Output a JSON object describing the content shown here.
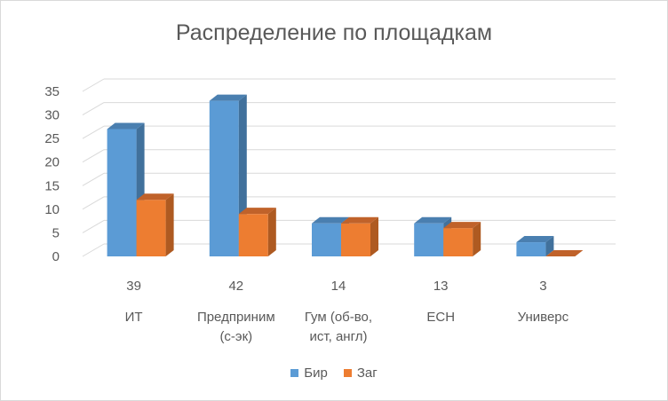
{
  "chart_data": {
    "type": "bar",
    "title": "Распределение по площадкам",
    "categories": [
      [
        "39",
        "ИТ"
      ],
      [
        "42",
        "Предприним",
        "(с-эк)"
      ],
      [
        "14",
        "Гум (об-во,",
        "ист, англ)"
      ],
      [
        "13",
        "ЕСН"
      ],
      [
        "3",
        "Универс"
      ]
    ],
    "series": [
      {
        "name": "Бир",
        "color": "#5b9bd5",
        "side": "#41719c",
        "top": "#4a7fb0",
        "values": [
          27,
          33,
          7,
          7,
          3
        ]
      },
      {
        "name": "Заг",
        "color": "#ed7d31",
        "side": "#ae5a21",
        "top": "#c0622a",
        "values": [
          12,
          9,
          7,
          6,
          0
        ]
      }
    ],
    "ylim": [
      0,
      35
    ],
    "yticks": [
      0,
      5,
      10,
      15,
      20,
      25,
      30,
      35
    ],
    "grid": true,
    "legend_position": "bottom",
    "style": "3d-column"
  }
}
